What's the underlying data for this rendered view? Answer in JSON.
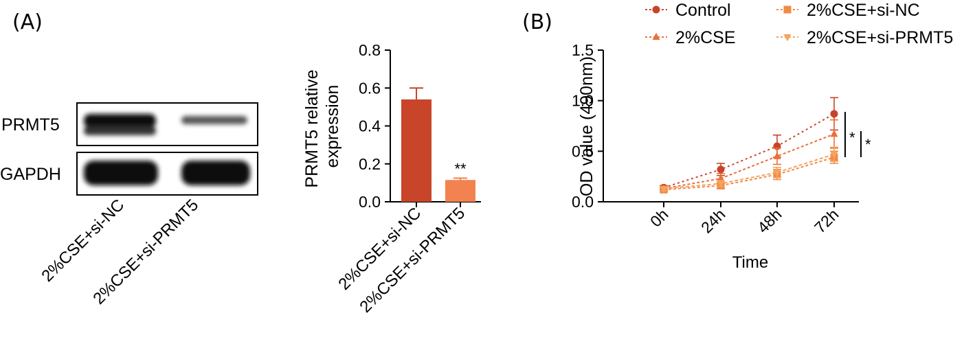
{
  "panels": {
    "a_label": "(A)",
    "b_label": "(B)"
  },
  "western_blot": {
    "row_labels": [
      "PRMT5",
      "GAPDH"
    ],
    "lane_labels": [
      "2%CSE+si-NC",
      "2%CSE+si-PRMT5"
    ]
  },
  "colors": {
    "control": "#c8432a",
    "cse": "#ea6f3b",
    "cse_si_nc": "#f08a4a",
    "cse_si_prmt5": "#f6a35c",
    "bar_si_nc": "#c8452a",
    "bar_si_prmt5": "#f2824f"
  },
  "chart_data": [
    {
      "type": "bar",
      "categories": [
        "2%CSE+si-NC",
        "2%CSE+si-PRMT5"
      ],
      "values": [
        0.54,
        0.115
      ],
      "errors": [
        0.06,
        0.01
      ],
      "annotations": [
        "",
        "**"
      ],
      "title": "",
      "xlabel": "",
      "ylabel": "PRMT5 relative\nexpression",
      "ylim": [
        0,
        0.8
      ],
      "yticks": [
        "0.0",
        "0.2",
        "0.4",
        "0.6",
        "0.8"
      ],
      "grid": false
    },
    {
      "type": "line",
      "categories": [
        "0h",
        "24h",
        "48h",
        "72h"
      ],
      "series": [
        {
          "name": "Control",
          "values": [
            0.14,
            0.32,
            0.55,
            0.87
          ],
          "errors": [
            0.02,
            0.06,
            0.11,
            0.16
          ],
          "marker": "circle"
        },
        {
          "name": "2%CSE",
          "values": [
            0.13,
            0.23,
            0.45,
            0.67
          ],
          "errors": [
            0.02,
            0.05,
            0.08,
            0.14
          ],
          "marker": "triangle-up"
        },
        {
          "name": "2%CSE+si-NC",
          "values": [
            0.12,
            0.16,
            0.27,
            0.44
          ],
          "errors": [
            0.02,
            0.03,
            0.05,
            0.06
          ],
          "marker": "square"
        },
        {
          "name": "2%CSE+si-PRMT5",
          "values": [
            0.13,
            0.18,
            0.29,
            0.47
          ],
          "errors": [
            0.02,
            0.03,
            0.05,
            0.07
          ],
          "marker": "triangle-down"
        }
      ],
      "title": "",
      "xlabel": "Time",
      "ylabel": "OD value (490nm)",
      "ylim": [
        0,
        1.5
      ],
      "yticks": [
        "0.0",
        "0.5",
        "1.0",
        "1.5"
      ],
      "significance": [
        "*",
        "*"
      ],
      "legend_position": "top",
      "grid": false
    }
  ]
}
